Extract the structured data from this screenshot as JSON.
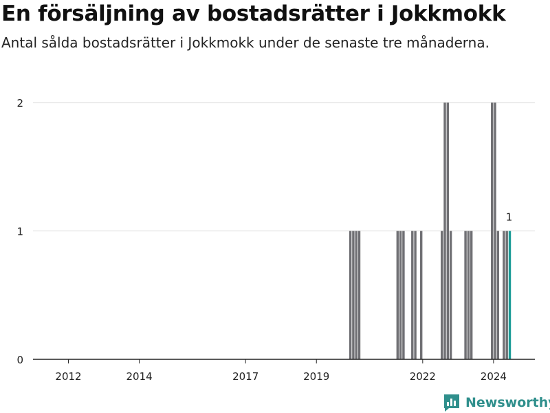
{
  "colors": {
    "bar": "#707074",
    "highlight": "#1a9b96",
    "grid": "#d9d9d9",
    "axis": "#222222",
    "brand": "#2f8f8c"
  },
  "brand": {
    "name": "Newsworthy",
    "icon": "newsworthy-logo-icon"
  },
  "chart_data": {
    "type": "bar",
    "title": "En försäljning av bostadsrätter i Jokkmokk",
    "subtitle": "Antal sålda bostadsrätter i Jokkmokk under de senaste tre månaderna.",
    "xlabel": "",
    "ylabel": "",
    "x_range": [
      "2011-07",
      "2025-09"
    ],
    "ylim": [
      0,
      2
    ],
    "y_ticks": [
      0,
      1,
      2
    ],
    "x_ticks": [
      "2012",
      "2014",
      "2017",
      "2019",
      "2022",
      "2024"
    ],
    "grid": true,
    "series": [
      {
        "values": [
          {
            "x": "2020-06",
            "y": 1
          },
          {
            "x": "2020-07",
            "y": 1
          },
          {
            "x": "2020-08",
            "y": 1
          },
          {
            "x": "2020-09",
            "y": 1
          },
          {
            "x": "2021-10",
            "y": 1
          },
          {
            "x": "2021-11",
            "y": 1
          },
          {
            "x": "2021-12",
            "y": 1
          },
          {
            "x": "2022-03",
            "y": 1
          },
          {
            "x": "2022-04",
            "y": 1
          },
          {
            "x": "2022-06",
            "y": 1
          },
          {
            "x": "2023-01",
            "y": 1
          },
          {
            "x": "2023-02",
            "y": 2
          },
          {
            "x": "2023-03",
            "y": 2
          },
          {
            "x": "2023-04",
            "y": 1
          },
          {
            "x": "2023-09",
            "y": 1
          },
          {
            "x": "2023-10",
            "y": 1
          },
          {
            "x": "2023-11",
            "y": 1
          },
          {
            "x": "2024-06",
            "y": 2
          },
          {
            "x": "2024-07",
            "y": 2
          },
          {
            "x": "2024-08",
            "y": 1
          },
          {
            "x": "2024-10",
            "y": 1
          },
          {
            "x": "2024-11",
            "y": 1
          }
        ]
      }
    ],
    "highlight": {
      "x": "2024-12",
      "y": 1,
      "label": "1"
    }
  }
}
